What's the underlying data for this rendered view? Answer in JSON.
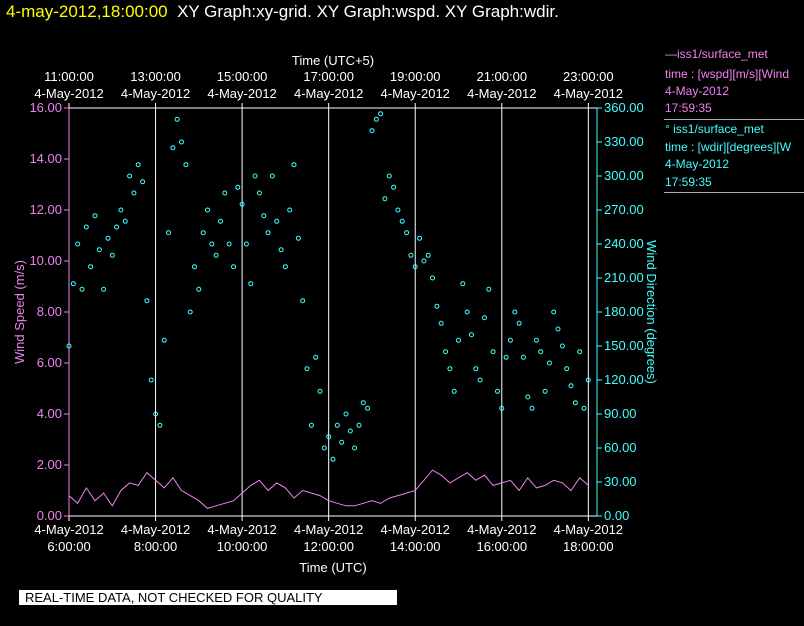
{
  "header": {
    "timestamp": "4-may-2012,18:00:00",
    "graphs": "XY Graph:xy-grid.  XY Graph:wspd.  XY Graph:wdir."
  },
  "legend": [
    {
      "line1": "—iss1/surface_met",
      "line2": "time : [wspd][m/s][Wind",
      "line3": "4-May-2012",
      "line4": "17:59:35",
      "color": "#ee82ee"
    },
    {
      "line1": "° iss1/surface_met",
      "line2": "time : [wdir][degrees][W",
      "line3": "4-May-2012",
      "line4": "17:59:35",
      "color": "#40ffff"
    }
  ],
  "quality_note": "REAL-TIME DATA, NOT CHECKED FOR QUALITY",
  "colors": {
    "wspd": "#ee82ee",
    "wdir": "#40ffff",
    "grid": "#ffffff",
    "axis": "#ffffff"
  },
  "chart_data": {
    "type": "line",
    "title": "",
    "x_range": [
      6.0,
      18.2
    ],
    "grid": true,
    "xlabel_bottom": "Time (UTC)",
    "xlabel_top": "Time (UTC+5)",
    "ylabel_left": "Wind Speed (m/s)",
    "ylabel_right": "Wind Direction (degrees)",
    "y_left_range": [
      0,
      16
    ],
    "y_right_range": [
      0,
      360
    ],
    "x_ticks_bottom": [
      {
        "x": 6,
        "date": "4-May-2012",
        "time": "6:00:00"
      },
      {
        "x": 8,
        "date": "4-May-2012",
        "time": "8:00:00"
      },
      {
        "x": 10,
        "date": "4-May-2012",
        "time": "10:00:00"
      },
      {
        "x": 12,
        "date": "4-May-2012",
        "time": "12:00:00"
      },
      {
        "x": 14,
        "date": "4-May-2012",
        "time": "14:00:00"
      },
      {
        "x": 16,
        "date": "4-May-2012",
        "time": "16:00:00"
      },
      {
        "x": 18,
        "date": "4-May-2012",
        "time": "18:00:00"
      }
    ],
    "x_ticks_top": [
      {
        "x": 6,
        "time": "11:00:00",
        "date": "4-May-2012"
      },
      {
        "x": 8,
        "time": "13:00:00",
        "date": "4-May-2012"
      },
      {
        "x": 10,
        "time": "15:00:00",
        "date": "4-May-2012"
      },
      {
        "x": 12,
        "time": "17:00:00",
        "date": "4-May-2012"
      },
      {
        "x": 14,
        "time": "19:00:00",
        "date": "4-May-2012"
      },
      {
        "x": 16,
        "time": "21:00:00",
        "date": "4-May-2012"
      },
      {
        "x": 18,
        "time": "23:00:00",
        "date": "4-May-2012"
      }
    ],
    "y_left_ticks": [
      "0.00",
      "2.00",
      "4.00",
      "6.00",
      "8.00",
      "10.00",
      "12.00",
      "14.00",
      "16.00"
    ],
    "y_right_ticks": [
      "0.00",
      "30.00",
      "60.00",
      "90.00",
      "120.00",
      "150.00",
      "180.00",
      "210.00",
      "240.00",
      "270.00",
      "300.00",
      "330.00",
      "360.00"
    ],
    "series": [
      {
        "name": "iss1/surface_met wspd",
        "style": "line",
        "axis": "left",
        "x": [
          6.0,
          6.2,
          6.4,
          6.6,
          6.8,
          7.0,
          7.2,
          7.4,
          7.6,
          7.8,
          8.0,
          8.2,
          8.4,
          8.6,
          8.8,
          9.0,
          9.2,
          9.4,
          9.6,
          9.8,
          10.0,
          10.2,
          10.4,
          10.6,
          10.8,
          11.0,
          11.2,
          11.4,
          11.6,
          11.8,
          12.0,
          12.2,
          12.4,
          12.6,
          12.8,
          13.0,
          13.2,
          13.4,
          13.6,
          13.8,
          14.0,
          14.2,
          14.4,
          14.6,
          14.8,
          15.0,
          15.2,
          15.4,
          15.6,
          15.8,
          16.0,
          16.2,
          16.4,
          16.6,
          16.8,
          17.0,
          17.2,
          17.4,
          17.6,
          17.8,
          18.0
        ],
        "y": [
          0.8,
          0.5,
          1.1,
          0.6,
          0.9,
          0.4,
          1.0,
          1.3,
          1.2,
          1.7,
          1.4,
          1.1,
          1.5,
          1.0,
          0.8,
          0.6,
          0.3,
          0.4,
          0.5,
          0.6,
          0.9,
          1.2,
          1.4,
          1.0,
          1.3,
          1.1,
          0.7,
          1.0,
          0.9,
          0.8,
          0.6,
          0.5,
          0.4,
          0.4,
          0.5,
          0.6,
          0.5,
          0.7,
          0.8,
          0.9,
          1.0,
          1.4,
          1.8,
          1.6,
          1.3,
          1.5,
          1.7,
          1.4,
          1.6,
          1.2,
          1.3,
          1.4,
          1.0,
          1.5,
          1.1,
          1.2,
          1.4,
          1.3,
          1.0,
          1.5,
          1.2
        ]
      },
      {
        "name": "iss1/surface_met wdir",
        "style": "scatter",
        "axis": "right",
        "x": [
          6.0,
          6.1,
          6.2,
          6.3,
          6.4,
          6.5,
          6.6,
          6.7,
          6.8,
          6.9,
          7.0,
          7.1,
          7.2,
          7.3,
          7.4,
          7.5,
          7.6,
          7.7,
          7.8,
          7.9,
          8.0,
          8.1,
          8.2,
          8.3,
          8.4,
          8.5,
          8.6,
          8.7,
          8.8,
          8.9,
          9.0,
          9.1,
          9.2,
          9.3,
          9.4,
          9.5,
          9.6,
          9.7,
          9.8,
          9.9,
          10.0,
          10.1,
          10.2,
          10.3,
          10.4,
          10.5,
          10.6,
          10.7,
          10.8,
          10.9,
          11.0,
          11.1,
          11.2,
          11.3,
          11.4,
          11.5,
          11.6,
          11.7,
          11.8,
          11.9,
          12.0,
          12.1,
          12.2,
          12.3,
          12.4,
          12.5,
          12.6,
          12.7,
          12.8,
          12.9,
          13.0,
          13.1,
          13.2,
          13.3,
          13.4,
          13.5,
          13.6,
          13.7,
          13.8,
          13.9,
          14.0,
          14.1,
          14.2,
          14.3,
          14.4,
          14.5,
          14.6,
          14.7,
          14.8,
          14.9,
          15.0,
          15.1,
          15.2,
          15.3,
          15.4,
          15.5,
          15.6,
          15.7,
          15.8,
          15.9,
          16.0,
          16.1,
          16.2,
          16.3,
          16.4,
          16.5,
          16.6,
          16.7,
          16.8,
          16.9,
          17.0,
          17.1,
          17.2,
          17.3,
          17.4,
          17.5,
          17.6,
          17.7,
          17.8,
          17.9,
          18.0
        ],
        "y": [
          150,
          205,
          240,
          200,
          255,
          220,
          265,
          235,
          200,
          245,
          230,
          255,
          270,
          260,
          300,
          285,
          310,
          295,
          190,
          120,
          90,
          80,
          155,
          250,
          325,
          350,
          330,
          310,
          180,
          220,
          200,
          250,
          270,
          240,
          230,
          260,
          285,
          240,
          220,
          290,
          275,
          240,
          205,
          300,
          285,
          265,
          250,
          300,
          260,
          235,
          220,
          270,
          310,
          245,
          190,
          130,
          80,
          140,
          110,
          60,
          70,
          50,
          80,
          65,
          90,
          75,
          60,
          80,
          100,
          95,
          340,
          350,
          355,
          280,
          300,
          290,
          270,
          260,
          250,
          230,
          220,
          245,
          225,
          230,
          210,
          185,
          170,
          145,
          130,
          110,
          155,
          205,
          180,
          160,
          130,
          120,
          175,
          200,
          145,
          110,
          95,
          140,
          155,
          180,
          170,
          140,
          105,
          95,
          155,
          145,
          110,
          135,
          180,
          165,
          150,
          130,
          115,
          100,
          145,
          95,
          120
        ]
      }
    ]
  }
}
